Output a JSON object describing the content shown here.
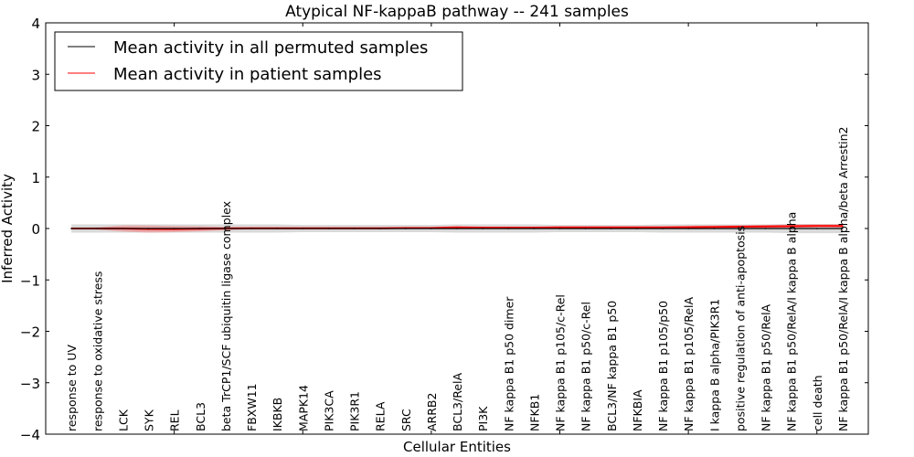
{
  "chart_data": {
    "type": "line",
    "title": "Atypical NF-kappaB pathway -- 241 samples",
    "xlabel": "Cellular Entities",
    "ylabel": "Inferred Activity",
    "ylim": [
      -4,
      4
    ],
    "xlim": [
      0,
      32
    ],
    "yticks": [
      4,
      3,
      2,
      1,
      0,
      -1,
      -2,
      -3,
      -4
    ],
    "ytick_labels": [
      "4",
      "3",
      "2",
      "1",
      "0",
      "−1",
      "−2",
      "−3",
      "−4"
    ],
    "xticks_top": [
      5,
      10,
      15,
      20,
      25,
      30
    ],
    "legend_position": "top-left",
    "categories": [
      "response to UV",
      "response to oxidative stress",
      "LCK",
      "SYK",
      "REL",
      "BCL3",
      "beta TrCP1/SCF ubiquitin ligase complex",
      "FBXW11",
      "IKBKB",
      "MAPK14",
      "PIK3CA",
      "PIK3R1",
      "RELA",
      "SRC",
      "ARRB2",
      "BCL3/RelA",
      "PI3K",
      "NF kappa B1 p50 dimer",
      "NFKB1",
      "NF kappa B1 p105/c-Rel",
      "NF kappa B1 p50/c-Rel",
      "BCL3/NF kappa B1 p50",
      "NFKBIA",
      "NF kappa B1 p105/p50",
      "NF kappa B1 p105/RelA",
      "I kappa B alpha/PIK3R1",
      "positive regulation of anti-apoptosis",
      "NF kappa B1 p50/RelA",
      "NF kappa B1 p50/RelA/I kappa B alpha",
      "cell death",
      "NF kappa B1 p50/RelA/I kappa B alpha/beta Arrestin2"
    ],
    "series": [
      {
        "name": "Mean activity in all permuted samples",
        "color": "#000000",
        "values": [
          0,
          0,
          0,
          0,
          0,
          0,
          0,
          0,
          0,
          0,
          0,
          0,
          0,
          0,
          0,
          0,
          0,
          0,
          0,
          0,
          0,
          0,
          0,
          0,
          0,
          0,
          0,
          0,
          0,
          0,
          0
        ],
        "band": [
          0.08,
          0.08,
          0.08,
          0.08,
          0.08,
          0.08,
          0.08,
          0.08,
          0.08,
          0.07,
          0.07,
          0.07,
          0.07,
          0.07,
          0.07,
          0.08,
          0.08,
          0.08,
          0.08,
          0.07,
          0.07,
          0.07,
          0.07,
          0.08,
          0.08,
          0.08,
          0.08,
          0.08,
          0.09,
          0.09,
          0.09
        ]
      },
      {
        "name": "Mean activity in patient samples",
        "color": "#ff0000",
        "values": [
          0,
          0,
          0.0,
          -0.01,
          -0.01,
          -0.005,
          0,
          0.005,
          0.005,
          0.005,
          0.005,
          0.005,
          0.005,
          0.01,
          0.01,
          0.02,
          0.015,
          0.015,
          0.015,
          0.02,
          0.02,
          0.02,
          0.02,
          0.02,
          0.025,
          0.03,
          0.035,
          0.04,
          0.045,
          0.05,
          0.05
        ],
        "band": [
          0.01,
          0.02,
          0.06,
          0.07,
          0.06,
          0.05,
          0.03,
          0.02,
          0.02,
          0.02,
          0.02,
          0.02,
          0.02,
          0.02,
          0.02,
          0.03,
          0.02,
          0.02,
          0.02,
          0.03,
          0.03,
          0.03,
          0.03,
          0.03,
          0.03,
          0.03,
          0.03,
          0.03,
          0.03,
          0.03,
          0.03
        ]
      }
    ]
  }
}
